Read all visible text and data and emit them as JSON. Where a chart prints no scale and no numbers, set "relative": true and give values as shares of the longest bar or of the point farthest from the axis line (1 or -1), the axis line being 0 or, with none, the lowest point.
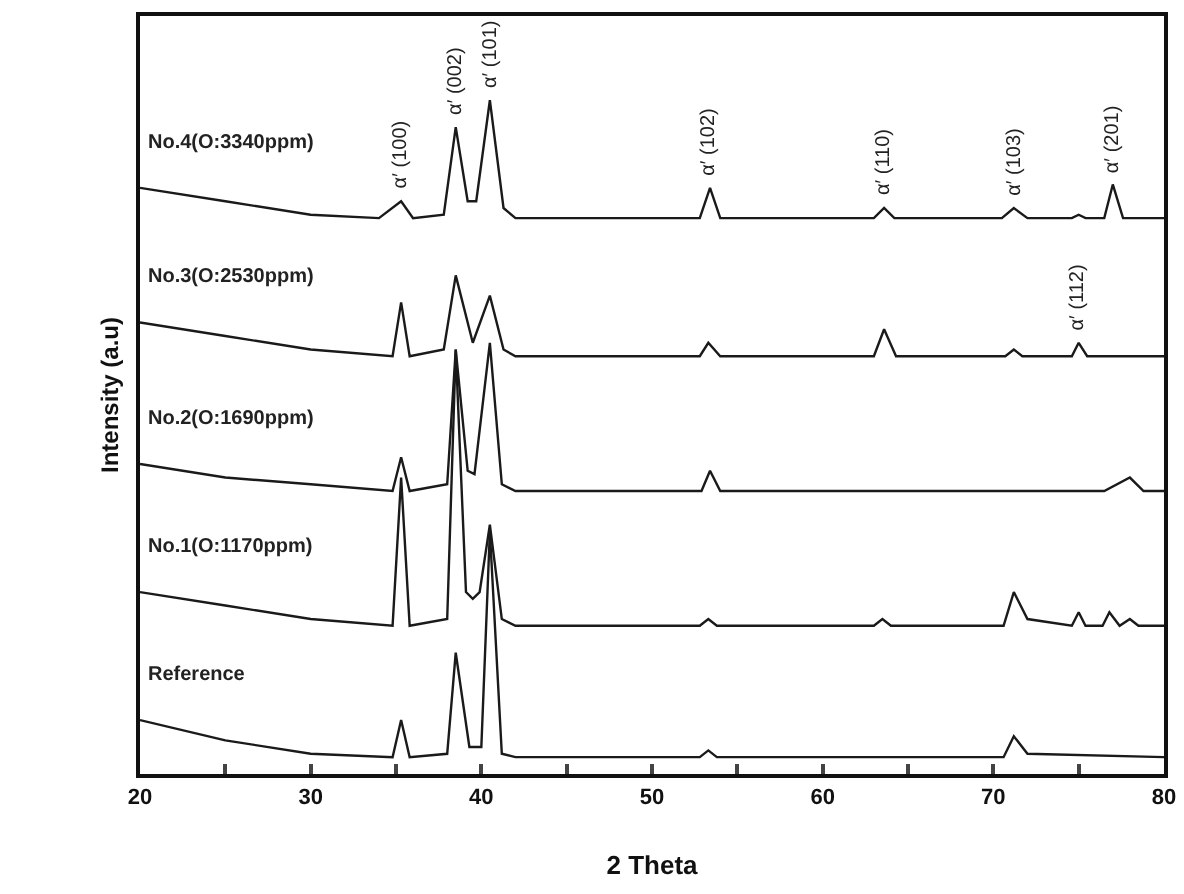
{
  "chart_data": {
    "type": "line",
    "relative": true,
    "xlabel": "2 Theta",
    "ylabel": "Intensity (a.u)",
    "xlim": [
      20,
      80
    ],
    "xticks": [
      20,
      {
        "value": 25,
        "label": null
      },
      30,
      {
        "value": 35,
        "label": null
      },
      40,
      {
        "value": 45,
        "label": null
      },
      50,
      {
        "value": 55,
        "label": null
      },
      60,
      {
        "value": 65,
        "label": null
      },
      70,
      {
        "value": 75,
        "label": null
      },
      80
    ],
    "grid": false,
    "legend": false,
    "marker": "none",
    "series": [
      {
        "name": "Reference",
        "color": "#1a1a1a",
        "x": [
          20,
          25,
          30,
          34.8,
          35.3,
          35.8,
          38,
          38.5,
          39.3,
          40,
          40.5,
          41.2,
          42,
          52.8,
          53.3,
          53.8,
          70.6,
          71.2,
          72,
          80
        ],
        "values": [
          0.08,
          0.05,
          0.03,
          0.025,
          0.08,
          0.025,
          0.03,
          0.18,
          0.04,
          0.04,
          0.36,
          0.03,
          0.025,
          0.025,
          0.035,
          0.025,
          0.025,
          0.056,
          0.03,
          0.025
        ]
      },
      {
        "name": "No.1(O:1170ppm)",
        "color": "#1a1a1a",
        "x": [
          20,
          25,
          30,
          34.8,
          35.3,
          35.8,
          38,
          38.5,
          39.1,
          39.5,
          39.9,
          40.5,
          41.2,
          42,
          52.8,
          53.3,
          53.8,
          63,
          63.5,
          64,
          70.6,
          71.2,
          72,
          74.6,
          75,
          75.4,
          76.4,
          76.8,
          77.4,
          78,
          78.5,
          80
        ],
        "values": [
          0.27,
          0.25,
          0.23,
          0.22,
          0.44,
          0.22,
          0.23,
          0.63,
          0.27,
          0.26,
          0.27,
          0.37,
          0.23,
          0.22,
          0.22,
          0.23,
          0.22,
          0.22,
          0.23,
          0.22,
          0.22,
          0.27,
          0.23,
          0.22,
          0.24,
          0.22,
          0.22,
          0.24,
          0.22,
          0.23,
          0.22,
          0.22
        ]
      },
      {
        "name": "No.2(O:1690ppm)",
        "color": "#1a1a1a",
        "x": [
          20,
          25,
          30,
          34.8,
          35.3,
          35.8,
          38,
          38.5,
          39.2,
          39.6,
          40.5,
          41.2,
          42,
          52.9,
          53.4,
          54,
          76.5,
          78,
          78.8,
          80
        ],
        "values": [
          0.46,
          0.44,
          0.43,
          0.42,
          0.47,
          0.42,
          0.43,
          0.63,
          0.45,
          0.445,
          0.64,
          0.43,
          0.42,
          0.42,
          0.45,
          0.42,
          0.42,
          0.44,
          0.42,
          0.42
        ]
      },
      {
        "name": "No.3(O:2530ppm)",
        "color": "#1a1a1a",
        "x": [
          20,
          25,
          30,
          34.8,
          35.3,
          35.8,
          37.8,
          38.5,
          39.5,
          40.5,
          41.3,
          42,
          52.8,
          53.3,
          54,
          63,
          63.6,
          64.3,
          70.7,
          71.2,
          71.7,
          74.6,
          75,
          75.5,
          80
        ],
        "values": [
          0.67,
          0.65,
          0.63,
          0.62,
          0.7,
          0.62,
          0.63,
          0.74,
          0.64,
          0.71,
          0.63,
          0.62,
          0.62,
          0.64,
          0.62,
          0.62,
          0.66,
          0.62,
          0.62,
          0.63,
          0.62,
          0.62,
          0.64,
          0.62,
          0.62
        ]
      },
      {
        "name": "No.4(O:3340ppm)",
        "color": "#1a1a1a",
        "x": [
          20,
          25,
          30,
          34,
          35.3,
          36,
          37.8,
          38.5,
          39.2,
          39.7,
          40.5,
          41.3,
          42,
          52.8,
          53.4,
          54,
          63,
          63.6,
          64.2,
          70.5,
          71.2,
          72,
          74.6,
          75,
          75.4,
          76.5,
          77,
          77.6,
          80
        ],
        "values": [
          0.87,
          0.85,
          0.83,
          0.825,
          0.85,
          0.825,
          0.83,
          0.96,
          0.85,
          0.85,
          1.0,
          0.84,
          0.825,
          0.825,
          0.87,
          0.825,
          0.825,
          0.84,
          0.825,
          0.825,
          0.84,
          0.825,
          0.825,
          0.83,
          0.825,
          0.825,
          0.875,
          0.825,
          0.825
        ]
      }
    ],
    "annotations": [
      {
        "text": "α′ (100)",
        "x": 35.3,
        "y": 0.85
      },
      {
        "text": "α′ (002)",
        "x": 38.5,
        "y": 0.96
      },
      {
        "text": "α′ (101)",
        "x": 40.5,
        "y": 1.0
      },
      {
        "text": "α′ (102)",
        "x": 53.4,
        "y": 0.87
      },
      {
        "text": "α′ (110)",
        "x": 63.6,
        "y": 0.84
      },
      {
        "text": "α′ (103)",
        "x": 71.2,
        "y": 0.84
      },
      {
        "text": "α′ (112)",
        "x": 75,
        "y": 0.64
      },
      {
        "text": "α′ (201)",
        "x": 77,
        "y": 0.875
      }
    ]
  }
}
